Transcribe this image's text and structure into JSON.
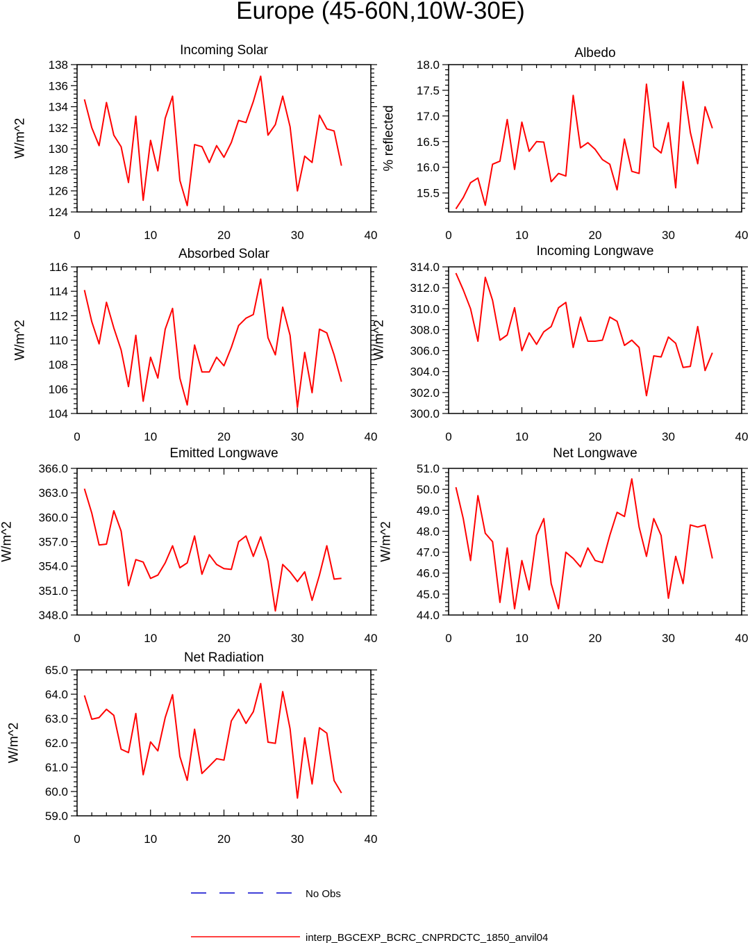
{
  "title": "Europe (45-60N,10W-30E)",
  "legend": [
    {
      "label": "No Obs",
      "color": "#0000cc",
      "style": "dashed"
    },
    {
      "label": "interp_BGCEXP_BCRC_CNPRDCTC_1850_anvil04",
      "color": "#ff0000",
      "style": "solid"
    }
  ],
  "chart_data": [
    {
      "type": "line",
      "title": "Incoming Solar",
      "xlabel": "",
      "ylabel": "W/m^2",
      "xlim": [
        0,
        40
      ],
      "ylim": [
        124,
        138
      ],
      "xticks": [
        0,
        10,
        20,
        30,
        40
      ],
      "xtick_labels": [
        "0",
        "10",
        "20",
        "30",
        "40"
      ],
      "yticks": [
        124,
        126,
        128,
        130,
        132,
        134,
        136,
        138
      ],
      "ytick_labels": [
        "124",
        "126",
        "128",
        "130",
        "132",
        "134",
        "136",
        "138"
      ],
      "series": [
        {
          "name": "interp_BGCEXP_BCRC_CNPRDCTC_1850_anvil04",
          "color": "#ff0000",
          "x": [
            1,
            2,
            3,
            4,
            5,
            6,
            7,
            8,
            9,
            10,
            11,
            12,
            13,
            14,
            15,
            16,
            17,
            18,
            19,
            20,
            21,
            22,
            23,
            24,
            25,
            26,
            27,
            28,
            29,
            30,
            31,
            32,
            33,
            34,
            35,
            36
          ],
          "values": [
            134.7,
            132.0,
            130.3,
            134.4,
            131.3,
            130.2,
            126.8,
            133.1,
            125.1,
            130.8,
            127.9,
            132.9,
            135.0,
            127.0,
            124.6,
            130.4,
            130.2,
            128.7,
            130.3,
            129.2,
            130.6,
            132.7,
            132.5,
            134.5,
            136.9,
            131.3,
            132.3,
            135.0,
            132.1,
            126.0,
            129.3,
            128.7,
            133.2,
            131.9,
            131.7,
            128.4
          ]
        }
      ]
    },
    {
      "type": "line",
      "title": "Albedo",
      "xlabel": "",
      "ylabel": "% reflected",
      "xlim": [
        0,
        40
      ],
      "ylim": [
        15.13,
        18.0
      ],
      "xticks": [
        0,
        10,
        20,
        30,
        40
      ],
      "xtick_labels": [
        "0",
        "10",
        "20",
        "30",
        "40"
      ],
      "yticks": [
        15.5,
        16.0,
        16.5,
        17.0,
        17.5,
        18.0
      ],
      "ytick_labels": [
        "15.5",
        "16.0",
        "16.5",
        "17.0",
        "17.5",
        "18.0"
      ],
      "series": [
        {
          "name": "interp_BGCEXP_BCRC_CNPRDCTC_1850_anvil04",
          "color": "#ff0000",
          "x": [
            1,
            2,
            3,
            4,
            5,
            6,
            7,
            8,
            9,
            10,
            11,
            12,
            13,
            14,
            15,
            16,
            17,
            18,
            19,
            20,
            21,
            22,
            23,
            24,
            25,
            26,
            27,
            28,
            29,
            30,
            31,
            32,
            33,
            34,
            35,
            36
          ],
          "values": [
            15.19,
            15.41,
            15.7,
            15.79,
            15.26,
            16.06,
            16.12,
            16.93,
            15.96,
            16.88,
            16.31,
            16.5,
            16.49,
            15.72,
            15.88,
            15.83,
            17.4,
            16.38,
            16.48,
            16.35,
            16.15,
            16.06,
            15.56,
            16.55,
            15.92,
            15.88,
            17.62,
            16.4,
            16.28,
            16.87,
            15.6,
            17.67,
            16.68,
            16.07,
            17.18,
            16.76
          ]
        }
      ]
    },
    {
      "type": "line",
      "title": "Absorbed Solar",
      "xlabel": "",
      "ylabel": "W/m^2",
      "xlim": [
        0,
        40
      ],
      "ylim": [
        104,
        116
      ],
      "xticks": [
        0,
        10,
        20,
        30,
        40
      ],
      "xtick_labels": [
        "0",
        "10",
        "20",
        "30",
        "40"
      ],
      "yticks": [
        104,
        106,
        108,
        110,
        112,
        114,
        116
      ],
      "ytick_labels": [
        "104",
        "106",
        "108",
        "110",
        "112",
        "114",
        "116"
      ],
      "series": [
        {
          "name": "interp_BGCEXP_BCRC_CNPRDCTC_1850_anvil04",
          "color": "#ff0000",
          "x": [
            1,
            2,
            3,
            4,
            5,
            6,
            7,
            8,
            9,
            10,
            11,
            12,
            13,
            14,
            15,
            16,
            17,
            18,
            19,
            20,
            21,
            22,
            23,
            24,
            25,
            26,
            27,
            28,
            29,
            30,
            31,
            32,
            33,
            34,
            35,
            36
          ],
          "values": [
            114.1,
            111.5,
            109.7,
            113.1,
            111.0,
            109.2,
            106.2,
            110.4,
            105.0,
            108.6,
            106.9,
            110.9,
            112.6,
            106.9,
            104.7,
            109.6,
            107.4,
            107.4,
            108.6,
            107.9,
            109.4,
            111.2,
            111.8,
            112.1,
            115.0,
            110.2,
            108.8,
            112.7,
            110.4,
            104.5,
            109.0,
            105.7,
            110.9,
            110.6,
            108.8,
            106.6
          ]
        }
      ]
    },
    {
      "type": "line",
      "title": "Incoming Longwave",
      "xlabel": "",
      "ylabel": "W/m^2",
      "xlim": [
        0,
        40
      ],
      "ylim": [
        300.0,
        314.0
      ],
      "xticks": [
        0,
        10,
        20,
        30,
        40
      ],
      "xtick_labels": [
        "0",
        "10",
        "20",
        "30",
        "40"
      ],
      "yticks": [
        300,
        302,
        304,
        306,
        308,
        310,
        312,
        314
      ],
      "ytick_labels": [
        "300.0",
        "302.0",
        "304.0",
        "306.0",
        "308.0",
        "310.0",
        "312.0",
        "314.0"
      ],
      "series": [
        {
          "name": "interp_BGCEXP_BCRC_CNPRDCTC_1850_anvil04",
          "color": "#ff0000",
          "x": [
            1,
            2,
            3,
            4,
            5,
            6,
            7,
            8,
            9,
            10,
            11,
            12,
            13,
            14,
            15,
            16,
            17,
            18,
            19,
            20,
            21,
            22,
            23,
            24,
            25,
            26,
            27,
            28,
            29,
            30,
            31,
            32,
            33,
            34,
            35,
            36
          ],
          "values": [
            313.4,
            311.8,
            310.0,
            306.9,
            313.0,
            310.8,
            307.0,
            307.5,
            310.1,
            306.0,
            307.7,
            306.6,
            307.8,
            308.3,
            310.1,
            310.6,
            306.3,
            309.2,
            306.9,
            306.9,
            307.0,
            309.2,
            308.8,
            306.5,
            307.0,
            306.3,
            301.7,
            305.5,
            305.4,
            307.3,
            306.7,
            304.4,
            304.5,
            308.3,
            304.1,
            305.8
          ]
        }
      ]
    },
    {
      "type": "line",
      "title": "Emitted Longwave",
      "xlabel": "",
      "ylabel": "W/m^2",
      "xlim": [
        0,
        40
      ],
      "ylim": [
        348.0,
        366.0
      ],
      "xticks": [
        0,
        10,
        20,
        30,
        40
      ],
      "xtick_labels": [
        "0",
        "10",
        "20",
        "30",
        "40"
      ],
      "yticks": [
        348,
        351,
        354,
        357,
        360,
        363,
        366
      ],
      "ytick_labels": [
        "348.0",
        "351.0",
        "354.0",
        "357.0",
        "360.0",
        "363.0",
        "366.0"
      ],
      "series": [
        {
          "name": "interp_BGCEXP_BCRC_CNPRDCTC_1850_anvil04",
          "color": "#ff0000",
          "x": [
            1,
            2,
            3,
            4,
            5,
            6,
            7,
            8,
            9,
            10,
            11,
            12,
            13,
            14,
            15,
            16,
            17,
            18,
            19,
            20,
            21,
            22,
            23,
            24,
            25,
            26,
            27,
            28,
            29,
            30,
            31,
            32,
            33,
            34,
            35,
            36
          ],
          "values": [
            363.5,
            360.5,
            356.6,
            356.7,
            360.8,
            358.3,
            351.6,
            354.8,
            354.5,
            352.5,
            352.9,
            354.4,
            356.5,
            353.8,
            354.4,
            357.7,
            353.0,
            355.4,
            354.2,
            353.7,
            353.6,
            357.0,
            357.7,
            355.2,
            357.6,
            354.6,
            348.5,
            354.2,
            353.3,
            352.1,
            353.3,
            349.8,
            352.9,
            356.5,
            352.4,
            352.5
          ]
        }
      ]
    },
    {
      "type": "line",
      "title": "Net Longwave",
      "xlabel": "",
      "ylabel": "W/m^2",
      "xlim": [
        0,
        40
      ],
      "ylim": [
        44.0,
        51.0
      ],
      "xticks": [
        0,
        10,
        20,
        30,
        40
      ],
      "xtick_labels": [
        "0",
        "10",
        "20",
        "30",
        "40"
      ],
      "yticks": [
        44,
        45,
        46,
        47,
        48,
        49,
        50,
        51
      ],
      "ytick_labels": [
        "44.0",
        "45.0",
        "46.0",
        "47.0",
        "48.0",
        "49.0",
        "50.0",
        "51.0"
      ],
      "series": [
        {
          "name": "interp_BGCEXP_BCRC_CNPRDCTC_1850_anvil04",
          "color": "#ff0000",
          "x": [
            1,
            2,
            3,
            4,
            5,
            6,
            7,
            8,
            9,
            10,
            11,
            12,
            13,
            14,
            15,
            16,
            17,
            18,
            19,
            20,
            21,
            22,
            23,
            24,
            25,
            26,
            27,
            28,
            29,
            30,
            31,
            32,
            33,
            34,
            35,
            36
          ],
          "values": [
            50.1,
            48.6,
            46.6,
            49.7,
            47.9,
            47.5,
            44.6,
            47.2,
            44.3,
            46.6,
            45.2,
            47.8,
            48.6,
            45.5,
            44.3,
            47.0,
            46.7,
            46.3,
            47.2,
            46.6,
            46.5,
            47.8,
            48.9,
            48.7,
            50.5,
            48.2,
            46.8,
            48.6,
            47.8,
            44.8,
            46.8,
            45.5,
            48.3,
            48.2,
            48.3,
            46.7
          ]
        }
      ]
    },
    {
      "type": "line",
      "title": "Net Radiation",
      "xlabel": "",
      "ylabel": "W/m^2",
      "xlim": [
        0,
        40
      ],
      "ylim": [
        59.0,
        65.0
      ],
      "xticks": [
        0,
        10,
        20,
        30,
        40
      ],
      "xtick_labels": [
        "0",
        "10",
        "20",
        "30",
        "40"
      ],
      "yticks": [
        59,
        60,
        61,
        62,
        63,
        64,
        65
      ],
      "ytick_labels": [
        "59.0",
        "60.0",
        "61.0",
        "62.0",
        "63.0",
        "64.0",
        "65.0"
      ],
      "series": [
        {
          "name": "interp_BGCEXP_BCRC_CNPRDCTC_1850_anvil04",
          "color": "#ff0000",
          "x": [
            1,
            2,
            3,
            4,
            5,
            6,
            7,
            8,
            9,
            10,
            11,
            12,
            13,
            14,
            15,
            16,
            17,
            18,
            19,
            20,
            21,
            22,
            23,
            24,
            25,
            26,
            27,
            28,
            29,
            30,
            31,
            32,
            33,
            34,
            35,
            36
          ],
          "values": [
            63.95,
            62.97,
            63.04,
            63.38,
            63.13,
            61.74,
            61.6,
            63.21,
            60.69,
            62.04,
            61.67,
            63.04,
            63.98,
            61.44,
            60.46,
            62.56,
            60.74,
            61.04,
            61.35,
            61.29,
            62.9,
            63.38,
            62.8,
            63.28,
            64.44,
            62.03,
            61.98,
            64.11,
            62.58,
            59.73,
            62.21,
            60.31,
            62.62,
            62.4,
            60.45,
            59.94
          ]
        }
      ]
    }
  ]
}
